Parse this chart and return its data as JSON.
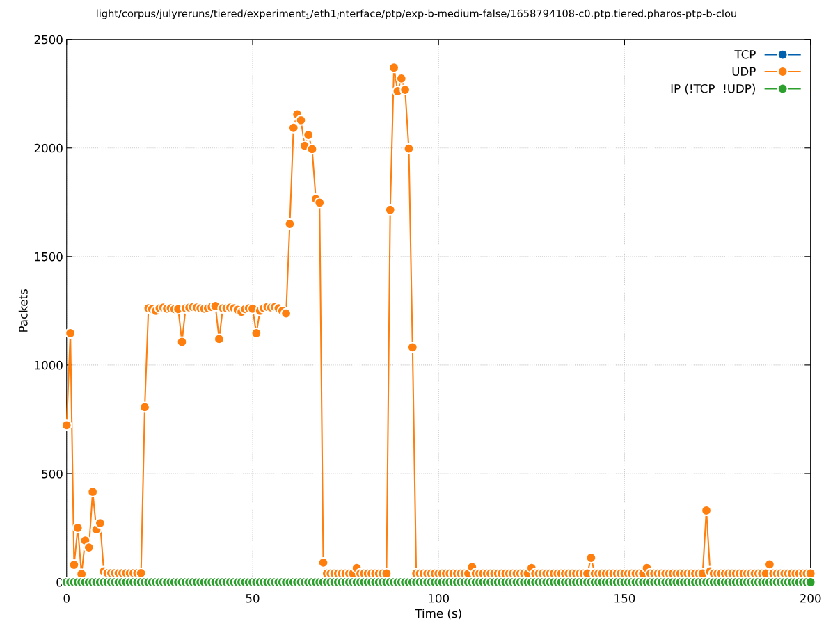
{
  "chart_data": {
    "type": "line",
    "title": "light/corpus/julyreruns/tiered/experiment$_{1}$/eth1$_{i}$nterface/ptp/exp-b-medium-false/1658794108-c0.ptp.tiered.pharos-ptp-b-clou",
    "xlabel": "Time (s)",
    "ylabel": "Packets",
    "x": [
      0,
      1,
      2,
      3,
      4,
      5,
      6,
      7,
      8,
      9,
      10,
      11,
      12,
      13,
      14,
      15,
      16,
      17,
      18,
      19,
      20,
      21,
      22,
      23,
      24,
      25,
      26,
      27,
      28,
      29,
      30,
      31,
      32,
      33,
      34,
      35,
      36,
      37,
      38,
      39,
      40,
      41,
      42,
      43,
      44,
      45,
      46,
      47,
      48,
      49,
      50,
      51,
      52,
      53,
      54,
      55,
      56,
      57,
      58,
      59,
      60,
      61,
      62,
      63,
      64,
      65,
      66,
      67,
      68,
      69,
      70,
      71,
      72,
      73,
      74,
      75,
      76,
      77,
      78,
      79,
      80,
      81,
      82,
      83,
      84,
      85,
      86,
      87,
      88,
      89,
      90,
      91,
      92,
      93,
      94,
      95,
      96,
      97,
      98,
      99,
      100,
      101,
      102,
      103,
      104,
      105,
      106,
      107,
      108,
      109,
      110,
      111,
      112,
      113,
      114,
      115,
      116,
      117,
      118,
      119,
      120,
      121,
      122,
      123,
      124,
      125,
      126,
      127,
      128,
      129,
      130,
      131,
      132,
      133,
      134,
      135,
      136,
      137,
      138,
      139,
      140,
      141,
      142,
      143,
      144,
      145,
      146,
      147,
      148,
      149,
      150,
      151,
      152,
      153,
      154,
      155,
      156,
      157,
      158,
      159,
      160,
      161,
      162,
      163,
      164,
      165,
      166,
      167,
      168,
      169,
      170,
      171,
      172,
      173,
      174,
      175,
      176,
      177,
      178,
      179,
      180,
      181,
      182,
      183,
      184,
      185,
      186,
      187,
      188,
      189,
      190,
      191,
      192,
      193,
      194,
      195,
      196,
      197,
      198,
      199,
      200
    ],
    "series": [
      {
        "name": "TCP",
        "color": "#0060ad",
        "values": [
          null,
          null,
          null,
          null,
          null,
          null,
          null,
          null,
          null,
          null,
          null,
          null,
          null,
          null,
          null,
          null,
          null,
          null,
          null,
          null,
          null,
          null,
          null,
          null,
          null,
          null,
          null,
          null,
          null,
          null,
          null,
          null,
          null,
          null,
          null,
          null,
          null,
          null,
          null,
          null,
          null,
          null,
          null,
          null,
          null,
          null,
          null,
          null,
          null,
          null,
          null,
          null,
          null,
          null,
          null,
          null,
          null,
          null,
          null,
          null,
          null,
          null,
          null,
          null,
          null,
          null,
          null,
          null,
          null,
          null,
          null,
          null,
          null,
          null,
          null,
          null,
          null,
          null,
          null,
          null,
          null,
          null,
          null,
          null,
          null,
          null,
          null,
          null,
          null,
          null,
          null,
          null,
          null,
          null,
          null,
          null,
          null,
          null,
          null,
          null,
          null,
          null,
          null,
          null,
          null,
          null,
          null,
          null,
          null,
          null,
          null,
          null,
          null,
          null,
          null,
          null,
          null,
          null,
          null,
          null,
          null,
          null,
          null,
          null,
          null,
          null,
          null,
          null,
          null,
          null,
          null,
          null,
          null,
          null,
          null,
          null,
          null,
          null,
          null,
          null,
          null,
          null,
          null,
          null,
          null,
          null,
          null,
          null,
          null,
          null,
          null,
          null,
          null,
          null,
          null,
          null,
          null,
          null,
          null,
          null,
          null,
          null,
          null,
          null,
          null,
          null,
          null,
          null,
          null,
          null,
          null,
          null,
          null,
          null,
          null,
          null,
          null,
          null,
          null,
          null,
          null,
          null,
          null,
          null,
          null,
          null,
          null,
          null,
          null,
          null,
          null,
          null,
          null,
          null,
          null,
          null,
          null,
          null,
          null,
          null,
          null
        ]
      },
      {
        "name": "UDP",
        "color": "#ff7f0e",
        "values": [
          723,
          1147,
          80,
          250,
          38,
          192,
          160,
          416,
          243,
          272,
          50,
          42,
          42,
          42,
          42,
          42,
          42,
          42,
          42,
          42,
          42,
          806,
          1262,
          1258,
          1250,
          1262,
          1265,
          1260,
          1262,
          1258,
          1258,
          1107,
          1262,
          1265,
          1268,
          1265,
          1262,
          1260,
          1262,
          1268,
          1272,
          1120,
          1262,
          1262,
          1265,
          1262,
          1255,
          1245,
          1258,
          1262,
          1260,
          1147,
          1250,
          1262,
          1268,
          1265,
          1268,
          1262,
          1250,
          1238,
          1650,
          2093,
          2155,
          2128,
          2010,
          2060,
          1995,
          1765,
          1748,
          90,
          40,
          40,
          40,
          40,
          40,
          40,
          40,
          40,
          65,
          40,
          40,
          40,
          40,
          40,
          40,
          40,
          40,
          1715,
          2370,
          2262,
          2320,
          2268,
          1997,
          1082,
          40,
          40,
          40,
          40,
          40,
          40,
          40,
          40,
          40,
          40,
          40,
          40,
          40,
          40,
          40,
          70,
          40,
          40,
          40,
          40,
          40,
          40,
          40,
          40,
          40,
          40,
          40,
          40,
          40,
          40,
          40,
          65,
          40,
          40,
          40,
          40,
          40,
          40,
          40,
          40,
          40,
          40,
          40,
          40,
          40,
          40,
          40,
          112,
          40,
          40,
          40,
          40,
          40,
          40,
          40,
          40,
          40,
          40,
          40,
          40,
          40,
          40,
          65,
          40,
          40,
          40,
          40,
          40,
          40,
          40,
          40,
          40,
          40,
          40,
          40,
          40,
          40,
          40,
          330,
          50,
          40,
          40,
          40,
          40,
          40,
          40,
          40,
          40,
          40,
          40,
          40,
          40,
          40,
          40,
          40,
          82,
          40,
          40,
          40,
          40,
          40,
          40,
          40,
          40,
          40,
          40,
          40
        ]
      },
      {
        "name": "IP (!TCP  !UDP)",
        "color": "#2ca02c",
        "values": [
          0,
          0,
          0,
          0,
          0,
          0,
          0,
          0,
          0,
          0,
          0,
          0,
          0,
          0,
          0,
          0,
          0,
          0,
          0,
          0,
          0,
          0,
          0,
          0,
          0,
          0,
          0,
          0,
          0,
          0,
          0,
          0,
          0,
          0,
          0,
          0,
          0,
          0,
          0,
          0,
          0,
          0,
          0,
          0,
          0,
          0,
          0,
          0,
          0,
          0,
          0,
          0,
          0,
          0,
          0,
          0,
          0,
          0,
          0,
          0,
          0,
          0,
          0,
          0,
          0,
          0,
          0,
          0,
          0,
          0,
          0,
          0,
          0,
          0,
          0,
          0,
          0,
          0,
          0,
          0,
          0,
          0,
          0,
          0,
          0,
          0,
          0,
          0,
          0,
          0,
          0,
          0,
          0,
          0,
          0,
          0,
          0,
          0,
          0,
          0,
          0,
          0,
          0,
          0,
          0,
          0,
          0,
          0,
          0,
          0,
          0,
          0,
          0,
          0,
          0,
          0,
          0,
          0,
          0,
          0,
          0,
          0,
          0,
          0,
          0,
          0,
          0,
          0,
          0,
          0,
          0,
          0,
          0,
          0,
          0,
          0,
          0,
          0,
          0,
          0,
          0,
          0,
          0,
          0,
          0,
          0,
          0,
          0,
          0,
          0,
          0,
          0,
          0,
          0,
          0,
          0,
          0,
          0,
          0,
          0,
          0,
          0,
          0,
          0,
          0,
          0,
          0,
          0,
          0,
          0,
          0,
          0,
          0,
          0,
          0,
          0,
          0,
          0,
          0,
          0,
          0,
          0,
          0,
          0,
          0,
          0,
          0,
          0,
          0,
          0,
          0,
          0,
          0,
          0,
          0,
          0,
          0,
          0,
          0,
          0,
          0
        ]
      }
    ],
    "xlim": [
      0,
      200
    ],
    "xticks": [
      0,
      50,
      100,
      150,
      200
    ],
    "ylim": [
      0,
      2500
    ],
    "yticks": [
      0,
      500,
      1000,
      1500,
      2000,
      2500
    ],
    "grid": true,
    "legend": "top right",
    "marker": "circle",
    "line_style": "solid"
  }
}
